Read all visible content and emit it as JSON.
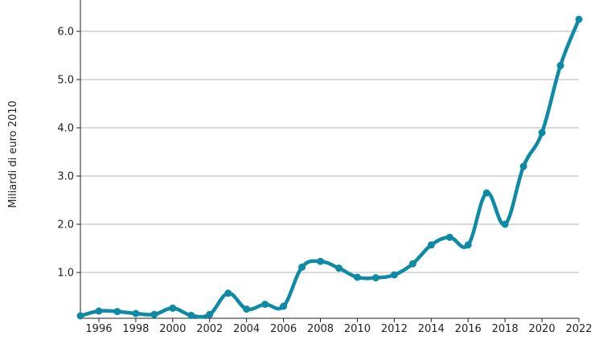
{
  "chart_data": {
    "type": "line",
    "title": "",
    "xlabel": "",
    "ylabel": "Miliardi di euro 2010",
    "x": [
      1995,
      1996,
      1997,
      1998,
      1999,
      2000,
      2001,
      2002,
      2003,
      2004,
      2005,
      2006,
      2007,
      2008,
      2009,
      2010,
      2011,
      2012,
      2013,
      2014,
      2015,
      2016,
      2017,
      2018,
      2019,
      2020,
      2021,
      2022
    ],
    "series": [
      {
        "values": [
          0.1,
          0.2,
          0.19,
          0.15,
          0.13,
          0.26,
          0.11,
          0.13,
          0.57,
          0.24,
          0.34,
          0.3,
          1.11,
          1.23,
          1.09,
          0.9,
          0.89,
          0.95,
          1.18,
          1.57,
          1.73,
          1.57,
          2.65,
          2.0,
          3.2,
          3.9,
          5.29,
          6.25
        ],
        "color": "#0e8aa5"
      }
    ],
    "xlim": [
      1995,
      2022
    ],
    "ylim": [
      0.05,
      6.65
    ],
    "xticks": [
      "1996",
      "1998",
      "2000",
      "2002",
      "2004",
      "2006",
      "2008",
      "2010",
      "2012",
      "2014",
      "2016",
      "2018",
      "2020",
      "2022"
    ],
    "yticks": [
      "1.0",
      "2.0",
      "3.0",
      "4.0",
      "5.0",
      "6.0"
    ],
    "grid": true,
    "colors": {
      "gridline": "#b4b4b4",
      "axis": "#222222",
      "line": "#0e8aa5"
    }
  }
}
